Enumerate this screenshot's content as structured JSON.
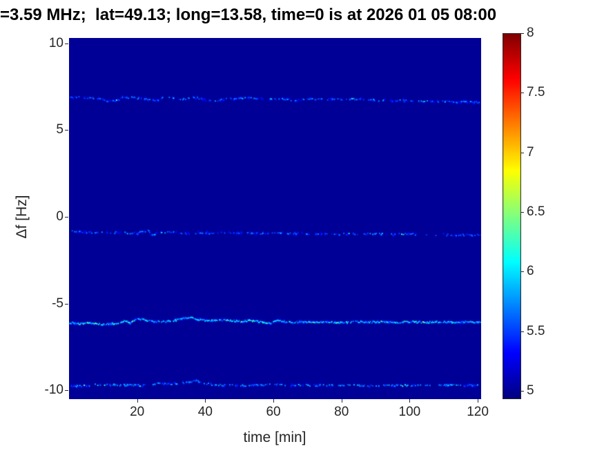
{
  "chart_data": {
    "type": "heatmap",
    "title": "=3.59 MHz;  lat=49.13; long=13.58, time=0 is at 2026 01 05 08:00",
    "xlabel": "time [min]",
    "ylabel": "Δf [Hz]",
    "xlim": [
      0,
      121
    ],
    "ylim": [
      -10.5,
      10.3
    ],
    "xticks": [
      20,
      40,
      60,
      80,
      100,
      120
    ],
    "yticks": [
      10,
      5,
      0,
      -5,
      -10
    ],
    "grid": false,
    "colorbar": {
      "position": "right",
      "colormap": "jet",
      "vmin": 4.93,
      "vmax": 8,
      "ticks": [
        8,
        7.5,
        7,
        6.5,
        6,
        5.5,
        5
      ]
    },
    "background_value": 5.0,
    "traces": [
      {
        "name": "doppler-trace-plus-6.8Hz",
        "mean_df_hz": 6.8,
        "intensity": 5.55,
        "density": 0.5,
        "points": [
          [
            0,
            6.9
          ],
          [
            6,
            6.85
          ],
          [
            9,
            6.8
          ],
          [
            11,
            6.62
          ],
          [
            13,
            6.65
          ],
          [
            16,
            6.88
          ],
          [
            19,
            6.85
          ],
          [
            23,
            6.78
          ],
          [
            26,
            6.72
          ],
          [
            28,
            6.95
          ],
          [
            31,
            6.78
          ],
          [
            34,
            6.8
          ],
          [
            37,
            6.85
          ],
          [
            40,
            6.72
          ],
          [
            43,
            6.7
          ],
          [
            46,
            6.78
          ],
          [
            50,
            6.8
          ],
          [
            54,
            6.85
          ],
          [
            58,
            6.8
          ],
          [
            62,
            6.78
          ],
          [
            66,
            6.72
          ],
          [
            70,
            6.78
          ],
          [
            74,
            6.75
          ],
          [
            78,
            6.78
          ],
          [
            82,
            6.75
          ],
          [
            86,
            6.78
          ],
          [
            90,
            6.7
          ],
          [
            94,
            6.68
          ],
          [
            98,
            6.7
          ],
          [
            102,
            6.68
          ],
          [
            106,
            6.65
          ],
          [
            110,
            6.65
          ],
          [
            114,
            6.62
          ],
          [
            118,
            6.6
          ],
          [
            121,
            6.6
          ]
        ]
      },
      {
        "name": "doppler-trace-minus-0.9Hz",
        "mean_df_hz": -0.9,
        "intensity": 5.5,
        "density": 0.42,
        "points": [
          [
            0,
            -0.82
          ],
          [
            4,
            -0.88
          ],
          [
            8,
            -0.9
          ],
          [
            12,
            -0.9
          ],
          [
            16,
            -0.92
          ],
          [
            20,
            -0.95
          ],
          [
            23,
            -0.78
          ],
          [
            24,
            -1.05
          ],
          [
            26,
            -0.92
          ],
          [
            30,
            -0.9
          ],
          [
            34,
            -0.95
          ],
          [
            38,
            -0.92
          ],
          [
            42,
            -0.95
          ],
          [
            46,
            -0.92
          ],
          [
            50,
            -0.95
          ],
          [
            55,
            -0.95
          ],
          [
            60,
            -0.97
          ],
          [
            65,
            -0.95
          ],
          [
            70,
            -1.0
          ],
          [
            75,
            -1.0
          ],
          [
            80,
            -1.0
          ],
          [
            85,
            -1.0
          ],
          [
            90,
            -1.0
          ],
          [
            95,
            -1.02
          ],
          [
            100,
            -1.0
          ],
          [
            105,
            -1.02
          ],
          [
            110,
            -1.05
          ],
          [
            115,
            -1.05
          ],
          [
            121,
            -1.05
          ]
        ]
      },
      {
        "name": "doppler-trace-minus-6Hz",
        "mean_df_hz": -6.0,
        "intensity": 5.85,
        "density": 0.85,
        "points": [
          [
            0,
            -6.1
          ],
          [
            3,
            -6.18
          ],
          [
            6,
            -6.12
          ],
          [
            9,
            -6.2
          ],
          [
            12,
            -6.15
          ],
          [
            14,
            -6.2
          ],
          [
            16,
            -6.0
          ],
          [
            18,
            -6.12
          ],
          [
            20,
            -5.85
          ],
          [
            22,
            -5.95
          ],
          [
            24,
            -6.02
          ],
          [
            27,
            -6.05
          ],
          [
            30,
            -6.0
          ],
          [
            33,
            -5.88
          ],
          [
            36,
            -5.8
          ],
          [
            38,
            -5.92
          ],
          [
            41,
            -6.0
          ],
          [
            44,
            -5.95
          ],
          [
            47,
            -5.98
          ],
          [
            50,
            -6.02
          ],
          [
            53,
            -5.98
          ],
          [
            56,
            -6.05
          ],
          [
            59,
            -6.15
          ],
          [
            61,
            -5.95
          ],
          [
            63,
            -6.05
          ],
          [
            66,
            -6.08
          ],
          [
            69,
            -6.05
          ],
          [
            72,
            -6.1
          ],
          [
            76,
            -6.05
          ],
          [
            80,
            -6.1
          ],
          [
            84,
            -6.05
          ],
          [
            88,
            -6.08
          ],
          [
            92,
            -6.05
          ],
          [
            96,
            -6.08
          ],
          [
            100,
            -6.05
          ],
          [
            104,
            -6.08
          ],
          [
            108,
            -6.05
          ],
          [
            112,
            -6.08
          ],
          [
            116,
            -6.05
          ],
          [
            121,
            -6.08
          ]
        ]
      },
      {
        "name": "doppler-trace-minus-9.7Hz",
        "mean_df_hz": -9.7,
        "intensity": 5.65,
        "density": 0.5,
        "points": [
          [
            0,
            -9.75
          ],
          [
            5,
            -9.72
          ],
          [
            10,
            -9.65
          ],
          [
            14,
            -9.7
          ],
          [
            18,
            -9.68
          ],
          [
            22,
            -9.72
          ],
          [
            26,
            -9.6
          ],
          [
            30,
            -9.62
          ],
          [
            34,
            -9.55
          ],
          [
            37,
            -9.42
          ],
          [
            39,
            -9.55
          ],
          [
            42,
            -9.68
          ],
          [
            46,
            -9.7
          ],
          [
            50,
            -9.72
          ],
          [
            55,
            -9.7
          ],
          [
            60,
            -9.65
          ],
          [
            65,
            -9.7
          ],
          [
            70,
            -9.7
          ],
          [
            75,
            -9.72
          ],
          [
            80,
            -9.7
          ],
          [
            85,
            -9.72
          ],
          [
            90,
            -9.75
          ],
          [
            95,
            -9.72
          ],
          [
            100,
            -9.7
          ],
          [
            105,
            -9.72
          ],
          [
            110,
            -9.7
          ],
          [
            115,
            -9.72
          ],
          [
            121,
            -9.7
          ]
        ]
      }
    ]
  }
}
